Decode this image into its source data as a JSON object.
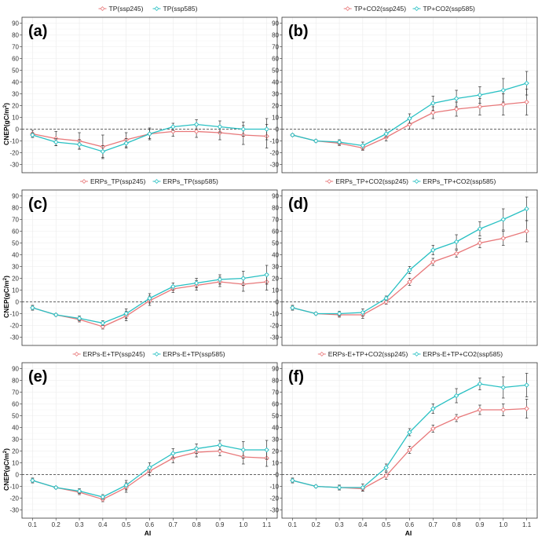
{
  "figure": {
    "ylabel": "CNEP(gC/m",
    "ylabel_sup": "2",
    "ylabel_end": ")",
    "xlabel": "AI",
    "colors": {
      "ssp245": "#e8787a",
      "ssp585": "#28c0c3",
      "error": "#333333",
      "zero_line": "#333333"
    }
  },
  "chart_data": [
    {
      "type": "line",
      "panel_label": "(a)",
      "x": [
        0.1,
        0.2,
        0.3,
        0.4,
        0.5,
        0.6,
        0.7,
        0.8,
        0.9,
        1.0,
        1.1
      ],
      "x_ticks": [
        "0.1",
        "0.2",
        "0.3",
        "0.4",
        "0.5",
        "0.6",
        "0.7",
        "0.8",
        "0.9",
        "1.0",
        "1.1"
      ],
      "ylim": [
        -37,
        95
      ],
      "y_ticks": [
        "-30",
        "-20",
        "-10",
        "0",
        "10",
        "20",
        "30",
        "40",
        "50",
        "60",
        "70",
        "80",
        "90"
      ],
      "series": [
        {
          "name": "TP(ssp245)",
          "scenario": "ssp245",
          "values": [
            -4,
            -8,
            -10,
            -15,
            -9,
            -4,
            -2,
            -2,
            -3,
            -5,
            -6
          ],
          "err": [
            3,
            6,
            7,
            10,
            6,
            5,
            4,
            5,
            6,
            8,
            10
          ]
        },
        {
          "name": "TP(ssp585)",
          "scenario": "ssp585",
          "values": [
            -5,
            -11,
            -13,
            -19,
            -12,
            -4,
            2,
            4,
            2,
            0,
            0
          ],
          "err": [
            2,
            3,
            4,
            5,
            4,
            4,
            3,
            4,
            5,
            6,
            9
          ]
        }
      ]
    },
    {
      "type": "line",
      "panel_label": "(b)",
      "x": [
        0.1,
        0.2,
        0.3,
        0.4,
        0.5,
        0.6,
        0.7,
        0.8,
        0.9,
        1.0,
        1.1
      ],
      "x_ticks": [
        "0.1",
        "0.2",
        "0.3",
        "0.4",
        "0.5",
        "0.6",
        "0.7",
        "0.8",
        "0.9",
        "1.0",
        "1.1"
      ],
      "ylim": [
        -37,
        95
      ],
      "y_ticks": [
        "-30",
        "-20",
        "-10",
        "0",
        "10",
        "20",
        "30",
        "40",
        "50",
        "60",
        "70",
        "80",
        "90"
      ],
      "series": [
        {
          "name": "TP+CO2(ssp245)",
          "scenario": "ssp245",
          "values": [
            -5,
            -10,
            -12,
            -16,
            -7,
            4,
            14,
            17,
            19,
            21,
            23
          ],
          "err": [
            1,
            1,
            2,
            2,
            3,
            4,
            5,
            6,
            7,
            9,
            11
          ]
        },
        {
          "name": "TP+CO2(ssp585)",
          "scenario": "ssp585",
          "values": [
            -5,
            -10,
            -11,
            -14,
            -4,
            9,
            22,
            26,
            29,
            33,
            39
          ],
          "err": [
            1,
            1,
            2,
            3,
            3,
            4,
            6,
            7,
            7,
            10,
            10
          ]
        }
      ]
    },
    {
      "type": "line",
      "panel_label": "(c)",
      "x": [
        0.1,
        0.2,
        0.3,
        0.4,
        0.5,
        0.6,
        0.7,
        0.8,
        0.9,
        1.0,
        1.1
      ],
      "x_ticks": [
        "0.1",
        "0.2",
        "0.3",
        "0.4",
        "0.5",
        "0.6",
        "0.7",
        "0.8",
        "0.9",
        "1.0",
        "1.1"
      ],
      "ylim": [
        -37,
        95
      ],
      "y_ticks": [
        "-30",
        "-20",
        "-10",
        "0",
        "10",
        "20",
        "30",
        "40",
        "50",
        "60",
        "70",
        "80",
        "90"
      ],
      "series": [
        {
          "name": "ERPs_TP(ssp245)",
          "scenario": "ssp245",
          "values": [
            -5,
            -11,
            -15,
            -21,
            -12,
            1,
            11,
            14,
            17,
            15,
            17
          ],
          "err": [
            2,
            1,
            2,
            2,
            4,
            4,
            3,
            4,
            4,
            6,
            7
          ]
        },
        {
          "name": "ERPs_TP(ssp585)",
          "scenario": "ssp585",
          "values": [
            -5,
            -11,
            -14,
            -18,
            -10,
            3,
            13,
            16,
            19,
            20,
            23
          ],
          "err": [
            2,
            1,
            2,
            2,
            4,
            4,
            3,
            4,
            4,
            6,
            8
          ]
        }
      ]
    },
    {
      "type": "line",
      "panel_label": "(d)",
      "x": [
        0.1,
        0.2,
        0.3,
        0.4,
        0.5,
        0.6,
        0.7,
        0.8,
        0.9,
        1.0,
        1.1
      ],
      "x_ticks": [
        "0.1",
        "0.2",
        "0.3",
        "0.4",
        "0.5",
        "0.6",
        "0.7",
        "0.8",
        "0.9",
        "1.0",
        "1.1"
      ],
      "ylim": [
        -37,
        95
      ],
      "y_ticks": [
        "-30",
        "-20",
        "-10",
        "0",
        "10",
        "20",
        "30",
        "40",
        "50",
        "60",
        "70",
        "80",
        "90"
      ],
      "series": [
        {
          "name": "ERPs_TP+CO2(ssp245)",
          "scenario": "ssp245",
          "values": [
            -5,
            -10,
            -11,
            -11,
            0,
            17,
            34,
            41,
            50,
            54,
            60
          ],
          "err": [
            2,
            1,
            2,
            3,
            2,
            3,
            3,
            3,
            4,
            6,
            9
          ]
        },
        {
          "name": "ERPs_TP+CO2(ssp585)",
          "scenario": "ssp585",
          "values": [
            -5,
            -10,
            -10,
            -9,
            3,
            27,
            44,
            51,
            62,
            70,
            79
          ],
          "err": [
            2,
            1,
            2,
            3,
            2,
            3,
            4,
            6,
            6,
            9,
            10
          ]
        }
      ]
    },
    {
      "type": "line",
      "panel_label": "(e)",
      "x": [
        0.1,
        0.2,
        0.3,
        0.4,
        0.5,
        0.6,
        0.7,
        0.8,
        0.9,
        1.0,
        1.1
      ],
      "x_ticks": [
        "0.1",
        "0.2",
        "0.3",
        "0.4",
        "0.5",
        "0.6",
        "0.7",
        "0.8",
        "0.9",
        "1.0",
        "1.1"
      ],
      "ylim": [
        -37,
        95
      ],
      "y_ticks": [
        "-30",
        "-20",
        "-10",
        "0",
        "10",
        "20",
        "30",
        "40",
        "50",
        "60",
        "70",
        "80",
        "90"
      ],
      "series": [
        {
          "name": "ERPs-E+TP(ssp245)",
          "scenario": "ssp245",
          "values": [
            -5,
            -11,
            -15,
            -21,
            -11,
            3,
            14,
            19,
            20,
            15,
            14
          ],
          "err": [
            2,
            1,
            2,
            2,
            4,
            4,
            4,
            4,
            4,
            6,
            7
          ]
        },
        {
          "name": "ERPs-E+TP(ssp585)",
          "scenario": "ssp585",
          "values": [
            -5,
            -11,
            -14,
            -19,
            -9,
            6,
            18,
            22,
            25,
            21,
            21
          ],
          "err": [
            2,
            1,
            2,
            2,
            4,
            4,
            4,
            4,
            4,
            7,
            8
          ]
        }
      ]
    },
    {
      "type": "line",
      "panel_label": "(f)",
      "x": [
        0.1,
        0.2,
        0.3,
        0.4,
        0.5,
        0.6,
        0.7,
        0.8,
        0.9,
        1.0,
        1.1
      ],
      "x_ticks": [
        "0.1",
        "0.2",
        "0.3",
        "0.4",
        "0.5",
        "0.6",
        "0.7",
        "0.8",
        "0.9",
        "1.0",
        "1.1"
      ],
      "ylim": [
        -37,
        95
      ],
      "y_ticks": [
        "-30",
        "-20",
        "-10",
        "0",
        "10",
        "20",
        "30",
        "40",
        "50",
        "60",
        "70",
        "80",
        "90"
      ],
      "series": [
        {
          "name": "ERPs-E+TP+CO2(ssp245)",
          "scenario": "ssp245",
          "values": [
            -5,
            -10,
            -11,
            -12,
            -1,
            21,
            39,
            48,
            55,
            55,
            56
          ],
          "err": [
            2,
            1,
            2,
            2,
            3,
            3,
            3,
            3,
            4,
            5,
            8
          ]
        },
        {
          "name": "ERPs-E+TP+CO2(ssp585)",
          "scenario": "ssp585",
          "values": [
            -5,
            -10,
            -11,
            -11,
            6,
            36,
            56,
            67,
            77,
            74,
            76
          ],
          "err": [
            2,
            1,
            2,
            3,
            3,
            3,
            4,
            6,
            5,
            9,
            10
          ]
        }
      ]
    }
  ]
}
